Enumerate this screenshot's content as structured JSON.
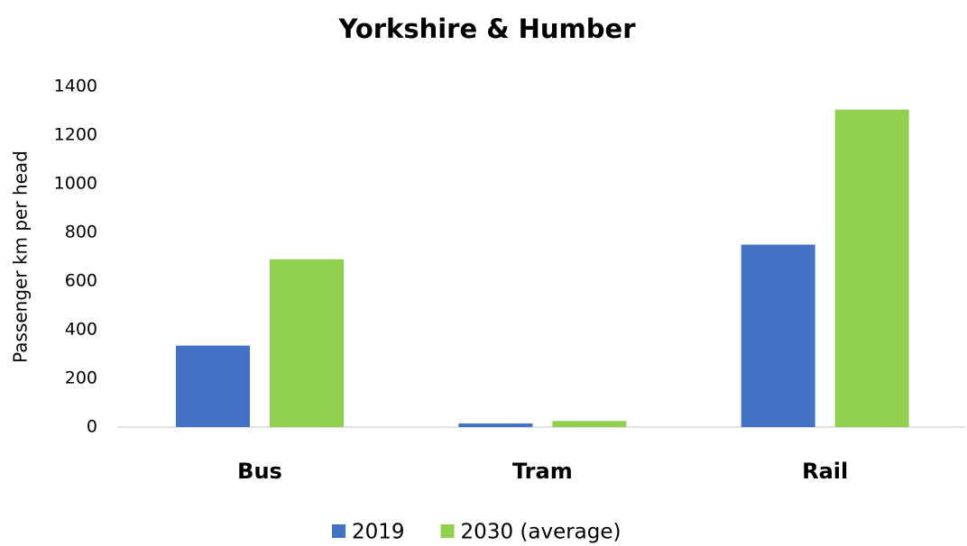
{
  "chart_data": {
    "type": "bar",
    "title": "Yorkshire & Humber",
    "y_label": "Passenger km per head",
    "categories": [
      "Bus",
      "Tram",
      "Rail"
    ],
    "series": [
      {
        "name": "2019",
        "color": "#4472c4",
        "values": [
          335,
          15,
          750
        ]
      },
      {
        "name": "2030 (average)",
        "color": "#92d050",
        "values": [
          690,
          25,
          1305
        ]
      }
    ],
    "ylim": [
      0,
      1400
    ],
    "yticks": [
      0,
      200,
      400,
      600,
      800,
      1000,
      1200,
      1400
    ],
    "grid": false
  }
}
